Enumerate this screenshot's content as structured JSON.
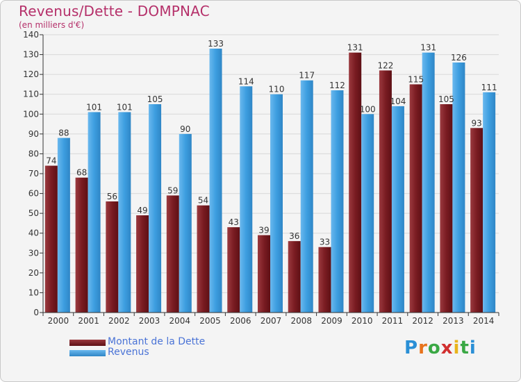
{
  "header": {
    "title": "Revenus/Dette - DOMPNAC",
    "subtitle": "(en milliers d'€)"
  },
  "colors": {
    "debt": "#7a1c22",
    "debt_light": "#9b3a3f",
    "revenue": "#3d9ee0",
    "revenue_light": "#6ab8ee",
    "title": "#b5306a",
    "legend_text": "#4a73d6"
  },
  "chart_data": {
    "type": "bar",
    "title": "Revenus/Dette - DOMPNAC",
    "ylabel": "(en milliers d'€)",
    "categories": [
      "2000",
      "2001",
      "2002",
      "2003",
      "2004",
      "2005",
      "2006",
      "2007",
      "2008",
      "2009",
      "2010",
      "2011",
      "2012",
      "2013",
      "2014"
    ],
    "series": [
      {
        "name": "Montant de la Dette",
        "values": [
          74,
          68,
          56,
          49,
          59,
          54,
          43,
          39,
          36,
          33,
          131,
          122,
          115,
          105,
          93
        ]
      },
      {
        "name": "Revenus",
        "values": [
          88,
          101,
          101,
          105,
          90,
          133,
          114,
          110,
          117,
          112,
          100,
          104,
          131,
          126,
          111
        ]
      }
    ],
    "ylim": [
      0,
      140
    ],
    "yticks": [
      0,
      10,
      20,
      30,
      40,
      50,
      60,
      70,
      80,
      90,
      100,
      110,
      120,
      130,
      140
    ],
    "grid": true,
    "legend_position": "bottom-left"
  },
  "legend": {
    "items": [
      {
        "label": "Montant de la Dette"
      },
      {
        "label": "Revenus"
      }
    ]
  },
  "logo": {
    "letters": [
      "P",
      "r",
      "o",
      "x",
      "i",
      "t",
      "i"
    ],
    "colors": [
      "#2a8fd6",
      "#e8731c",
      "#3aa844",
      "#d12f2f",
      "#e8b41c",
      "#3aa844",
      "#2a8fd6"
    ]
  }
}
